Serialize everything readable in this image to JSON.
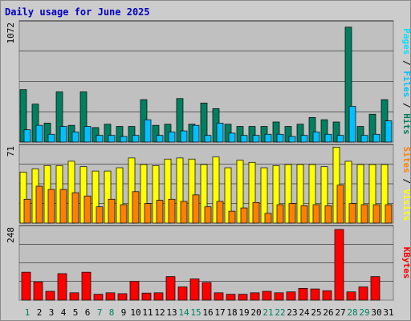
{
  "title": "Daily usage for June 2025",
  "colors": {
    "title": "#0000c0",
    "hits": "#008060",
    "files": "#00c0ff",
    "pages": "#00e0ff",
    "visits": "#ffff00",
    "sites": "#ff8000",
    "kbytes": "#ff0000",
    "weekend_day": "#008060",
    "weekday": "#000000",
    "plot_bg": "#c0c0c0",
    "gridline": "#000000"
  },
  "chart_data": {
    "type": "bar",
    "categories": [
      "1",
      "2",
      "3",
      "4",
      "5",
      "6",
      "7",
      "8",
      "9",
      "10",
      "11",
      "12",
      "13",
      "14",
      "15",
      "16",
      "17",
      "18",
      "19",
      "20",
      "21",
      "22",
      "23",
      "24",
      "25",
      "26",
      "27",
      "28",
      "29",
      "30",
      "31"
    ],
    "weekend_days": [
      "1",
      "7",
      "8",
      "14",
      "15",
      "21",
      "22",
      "28",
      "29"
    ],
    "panels": [
      {
        "ymax_label": "1072",
        "ylim": [
          0,
          1072
        ],
        "side_label": {
          "pages": "Pages",
          "files": "Files",
          "hits": "Hits",
          "sep": " / "
        },
        "series": [
          {
            "name": "Hits",
            "color_key": "hits",
            "values": [
              470,
              340,
              170,
              450,
              150,
              450,
              130,
              160,
              140,
              140,
              380,
              150,
              160,
              390,
              160,
              350,
              300,
              160,
              140,
              140,
              140,
              180,
              140,
              160,
              220,
              200,
              180,
              1030,
              140,
              250,
              380
            ]
          },
          {
            "name": "Files",
            "color_key": "files",
            "values": [
              110,
              150,
              70,
              140,
              90,
              140,
              60,
              60,
              50,
              60,
              200,
              60,
              90,
              100,
              150,
              60,
              170,
              80,
              60,
              60,
              70,
              70,
              50,
              60,
              90,
              70,
              60,
              320,
              60,
              70,
              190
            ]
          }
        ]
      },
      {
        "ymax_label": "71",
        "ylim": [
          0,
          71
        ],
        "side_label": {
          "sites": "Sites",
          "visits": "Visits",
          "sep": " / "
        },
        "series": [
          {
            "name": "Visits",
            "color_key": "visits",
            "values": [
              47,
              50,
              53,
              53,
              57,
              52,
              48,
              48,
              51,
              60,
              54,
              53,
              59,
              60,
              59,
              54,
              61,
              51,
              58,
              56,
              51,
              53,
              54,
              54,
              54,
              52,
              70,
              57,
              54,
              54,
              54
            ]
          },
          {
            "name": "Sites",
            "color_key": "sites",
            "values": [
              22,
              34,
              31,
              31,
              28,
              25,
              15,
              22,
              17,
              29,
              18,
              21,
              22,
              20,
              26,
              15,
              20,
              11,
              14,
              19,
              9,
              17,
              18,
              16,
              17,
              16,
              35,
              18,
              17,
              17,
              17
            ]
          }
        ]
      },
      {
        "ymax_label": "248",
        "ylim": [
          0,
          248
        ],
        "side_label": {
          "kbytes": "KBytes"
        },
        "series": [
          {
            "name": "KBytes",
            "color_key": "kbytes",
            "values": [
              95,
              62,
              30,
              90,
              25,
              95,
              20,
              25,
              22,
              64,
              24,
              25,
              80,
              45,
              72,
              60,
              25,
              20,
              20,
              25,
              30,
              25,
              28,
              40,
              38,
              32,
              240,
              28,
              45,
              80,
              0
            ]
          }
        ]
      }
    ]
  }
}
